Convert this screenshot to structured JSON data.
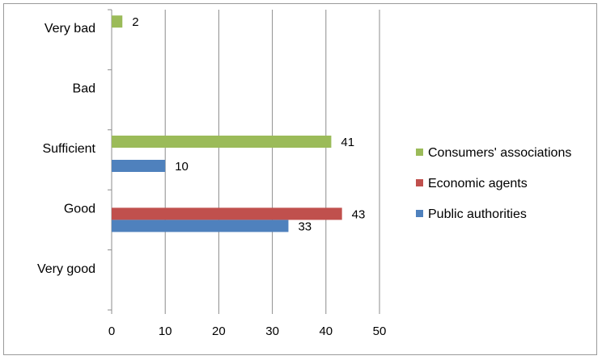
{
  "chart_data": {
    "type": "bar",
    "orientation": "horizontal",
    "categories": [
      "Very bad",
      "Bad",
      "Sufficient",
      "Good",
      "Very good"
    ],
    "series": [
      {
        "name": "Consumers' associations",
        "color": "#9bbb59",
        "values": [
          2,
          null,
          41,
          null,
          null
        ]
      },
      {
        "name": "Economic agents",
        "color": "#c0504d",
        "values": [
          null,
          null,
          null,
          43,
          null
        ]
      },
      {
        "name": "Public authorities",
        "color": "#4f81bd",
        "values": [
          null,
          null,
          10,
          33,
          null
        ]
      }
    ],
    "x_ticks": [
      "0",
      "10",
      "20",
      "30",
      "40",
      "50"
    ],
    "xlim": [
      0,
      50
    ],
    "grid": "vertical",
    "legend_position": "right",
    "data_labels": true
  }
}
